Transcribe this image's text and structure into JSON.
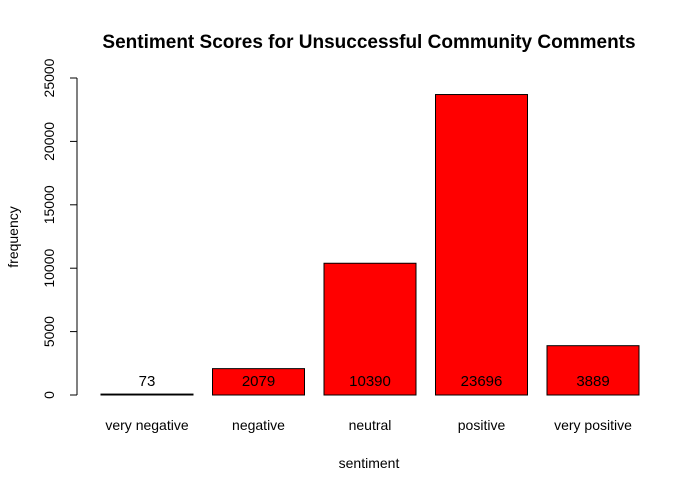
{
  "chart_data": {
    "type": "bar",
    "title": "Sentiment Scores for Unsuccessful Community Comments",
    "xlabel": "sentiment",
    "ylabel": "frequency",
    "categories": [
      "very negative",
      "negative",
      "neutral",
      "positive",
      "very positive"
    ],
    "values": [
      73,
      2079,
      10390,
      23696,
      3889
    ],
    "data_labels": [
      "73",
      "2079",
      "10390",
      "23696",
      "3889"
    ],
    "yticks": [
      0,
      5000,
      10000,
      15000,
      20000,
      25000
    ],
    "ytick_labels": [
      "0",
      "5000",
      "10000",
      "15000",
      "20000",
      "25000"
    ],
    "ylim": [
      0,
      25000
    ],
    "bar_color": "#ff0000",
    "grid": false,
    "legend": "none"
  }
}
